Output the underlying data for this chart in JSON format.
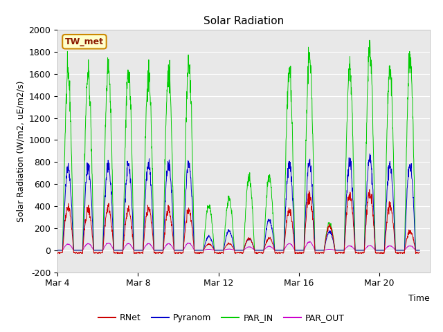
{
  "title": "Solar Radiation",
  "ylabel": "Solar Radiation (W/m2, uE/m2/s)",
  "xlabel": "Time",
  "ylim": [
    -200,
    2000
  ],
  "xtick_labels": [
    "Mar 4",
    "Mar 8",
    "Mar 12",
    "Mar 16",
    "Mar 20"
  ],
  "xtick_positions": [
    3,
    7,
    11,
    15,
    19
  ],
  "station_label": "TW_met",
  "fig_facecolor": "#ffffff",
  "plot_bg_color": "#e8e8e8",
  "colors": {
    "RNet": "#cc0000",
    "Pyranom": "#0000cc",
    "PAR_IN": "#00cc00",
    "PAR_OUT": "#cc00cc"
  },
  "title_fontsize": 11,
  "label_fontsize": 9,
  "tick_fontsize": 9,
  "yticks": [
    -200,
    0,
    200,
    400,
    600,
    800,
    1000,
    1200,
    1400,
    1600,
    1800,
    2000
  ]
}
